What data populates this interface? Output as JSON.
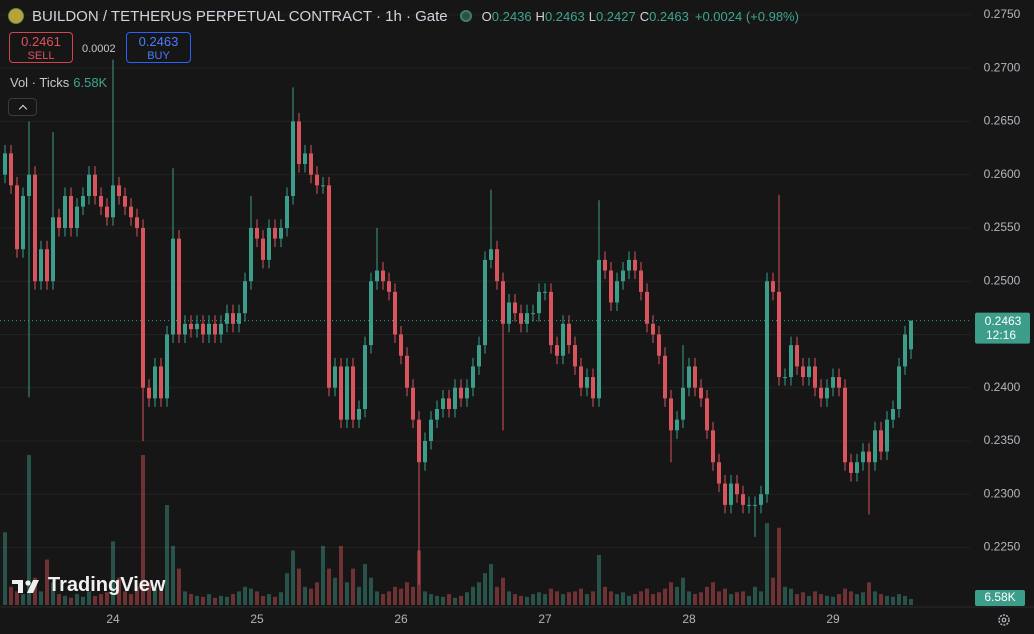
{
  "chart_data": {
    "type": "candlestick",
    "title": "BUILDON / TETHERUS PERPETUAL CONTRACT · 1h · Gate",
    "ohlc_keys": [
      "O",
      "H",
      "L",
      "C"
    ],
    "change": "+0.0024 (+0.98%)",
    "sell": {
      "price": 0.2461,
      "label": "SELL"
    },
    "spread": 0.0002,
    "buy": {
      "price": 0.2463,
      "label": "BUY"
    },
    "countdown": "12:16",
    "brand": "TradingView",
    "up_color": "#3c9d8b",
    "down_color": "#d9545c",
    "grid": true,
    "ylim": [
      0.2196,
      0.2764
    ],
    "yticks": [
      {
        "value": 0.275,
        "label": "0.2750"
      },
      {
        "value": 0.27,
        "label": "0.2700"
      },
      {
        "value": 0.265,
        "label": "0.2650"
      },
      {
        "value": 0.26,
        "label": "0.2600"
      },
      {
        "value": 0.255,
        "label": "0.2550"
      },
      {
        "value": 0.25,
        "label": "0.2500"
      },
      {
        "value": 0.245,
        "label": "0.2450"
      },
      {
        "value": 0.24,
        "label": "0.2400"
      },
      {
        "value": 0.235,
        "label": "0.2350"
      },
      {
        "value": 0.23,
        "label": "0.2300"
      },
      {
        "value": 0.225,
        "label": "0.2250"
      }
    ],
    "categories": [
      null,
      null,
      null,
      null,
      null,
      null,
      null,
      null,
      null,
      null,
      null,
      null,
      null,
      null,
      null,
      null,
      null,
      null,
      "24",
      null,
      null,
      null,
      null,
      null,
      null,
      null,
      null,
      null,
      null,
      null,
      null,
      null,
      null,
      null,
      null,
      null,
      null,
      null,
      null,
      null,
      null,
      null,
      "25",
      null,
      null,
      null,
      null,
      null,
      null,
      null,
      null,
      null,
      null,
      null,
      null,
      null,
      null,
      null,
      null,
      null,
      null,
      null,
      null,
      null,
      null,
      null,
      "26",
      null,
      null,
      null,
      null,
      null,
      null,
      null,
      null,
      null,
      null,
      null,
      null,
      null,
      null,
      null,
      null,
      null,
      null,
      null,
      null,
      null,
      null,
      null,
      "27",
      null,
      null,
      null,
      null,
      null,
      null,
      null,
      null,
      null,
      null,
      null,
      null,
      null,
      null,
      null,
      null,
      null,
      null,
      null,
      null,
      null,
      null,
      null,
      "28",
      null,
      null,
      null,
      null,
      null,
      null,
      null,
      null,
      null,
      null,
      null,
      null,
      null,
      null,
      null,
      null,
      null,
      null,
      null,
      null,
      null,
      null,
      null,
      "29",
      null,
      null,
      null,
      null,
      null,
      null,
      null,
      null,
      null,
      null,
      null,
      null,
      null
    ],
    "open": [
      0.26,
      0.262,
      0.259,
      0.253,
      0.258,
      0.26,
      0.25,
      0.253,
      0.25,
      0.256,
      0.255,
      0.258,
      0.255,
      0.257,
      0.258,
      0.26,
      0.258,
      0.257,
      0.256,
      0.259,
      0.258,
      0.257,
      0.256,
      0.255,
      0.24,
      0.239,
      0.242,
      0.239,
      0.245,
      0.254,
      0.245,
      0.246,
      0.2455,
      0.246,
      0.245,
      0.246,
      0.245,
      0.246,
      0.247,
      0.246,
      0.247,
      0.25,
      0.255,
      0.254,
      0.252,
      0.255,
      0.254,
      0.255,
      0.258,
      0.265,
      0.261,
      0.262,
      0.26,
      0.259,
      0.259,
      0.24,
      0.242,
      0.237,
      0.242,
      0.237,
      0.238,
      0.244,
      0.25,
      0.251,
      0.25,
      0.249,
      0.245,
      0.243,
      0.24,
      0.237,
      0.233,
      0.235,
      0.237,
      0.238,
      0.239,
      0.238,
      0.24,
      0.239,
      0.24,
      0.242,
      0.244,
      0.252,
      0.253,
      0.25,
      0.246,
      0.248,
      0.247,
      0.246,
      0.247,
      0.247,
      0.249,
      0.249,
      0.244,
      0.243,
      0.246,
      0.244,
      0.242,
      0.24,
      0.241,
      0.239,
      0.252,
      0.251,
      0.248,
      0.25,
      0.251,
      0.252,
      0.251,
      0.249,
      0.246,
      0.245,
      0.243,
      0.239,
      0.236,
      0.237,
      0.24,
      0.242,
      0.24,
      0.239,
      0.236,
      0.233,
      0.231,
      0.229,
      0.231,
      0.23,
      0.229,
      0.229,
      0.229,
      0.23,
      0.25,
      0.249,
      0.241,
      0.241,
      0.244,
      0.242,
      0.241,
      0.242,
      0.24,
      0.239,
      0.24,
      0.241,
      0.24,
      0.233,
      0.232,
      0.233,
      0.234,
      0.233,
      0.236,
      0.234,
      0.237,
      0.238,
      0.242,
      0.2436
    ],
    "high": [
      0.2628,
      0.2628,
      0.2598,
      0.2588,
      0.265,
      0.2608,
      0.2538,
      0.2538,
      0.264,
      0.2568,
      0.2588,
      0.2588,
      0.2578,
      0.2588,
      0.2608,
      0.2608,
      0.2588,
      0.2578,
      0.2708,
      0.2598,
      0.2588,
      0.2578,
      0.2568,
      0.2558,
      0.2408,
      0.2428,
      0.2428,
      0.2458,
      0.2606,
      0.2548,
      0.2468,
      0.2468,
      0.2468,
      0.2468,
      0.2468,
      0.2468,
      0.2468,
      0.2478,
      0.2478,
      0.2478,
      0.2508,
      0.258,
      0.2558,
      0.2548,
      0.2558,
      0.2558,
      0.2558,
      0.2588,
      0.2682,
      0.2658,
      0.2628,
      0.2628,
      0.2608,
      0.2598,
      0.2598,
      0.2428,
      0.2428,
      0.2428,
      0.2428,
      0.2388,
      0.2448,
      0.2508,
      0.255,
      0.2518,
      0.2508,
      0.2498,
      0.2458,
      0.2438,
      0.2408,
      0.2378,
      0.2358,
      0.2378,
      0.2388,
      0.2398,
      0.2398,
      0.2408,
      0.2408,
      0.2408,
      0.2428,
      0.2448,
      0.2528,
      0.2586,
      0.2538,
      0.2508,
      0.2488,
      0.2488,
      0.2478,
      0.2478,
      0.2478,
      0.2498,
      0.2498,
      0.2498,
      0.2448,
      0.2468,
      0.2468,
      0.2448,
      0.2428,
      0.2418,
      0.2418,
      0.2576,
      0.2528,
      0.2518,
      0.2508,
      0.2518,
      0.2528,
      0.2528,
      0.2518,
      0.2498,
      0.2468,
      0.2458,
      0.2438,
      0.2398,
      0.2378,
      0.244,
      0.2428,
      0.2428,
      0.2408,
      0.2398,
      0.2368,
      0.2338,
      0.2318,
      0.2318,
      0.2318,
      0.2308,
      0.2298,
      0.2298,
      0.2308,
      0.2508,
      0.2508,
      0.2581,
      0.2418,
      0.2448,
      0.2448,
      0.2428,
      0.2428,
      0.2428,
      0.2408,
      0.2408,
      0.2418,
      0.2418,
      0.2408,
      0.2338,
      0.2338,
      0.2348,
      0.2348,
      0.2368,
      0.2368,
      0.2378,
      0.2388,
      0.2428,
      0.2458,
      0.2463
    ],
    "low": [
      0.2592,
      0.2582,
      0.2522,
      0.2522,
      0.2391,
      0.2492,
      0.2492,
      0.2492,
      0.2492,
      0.2542,
      0.2542,
      0.2542,
      0.2542,
      0.2562,
      0.2572,
      0.2572,
      0.2562,
      0.2552,
      0.2552,
      0.2572,
      0.2562,
      0.2552,
      0.2542,
      0.235,
      0.2382,
      0.2382,
      0.2382,
      0.2382,
      0.2442,
      0.2442,
      0.2442,
      0.2447,
      0.2447,
      0.2442,
      0.2442,
      0.2442,
      0.2442,
      0.2452,
      0.2452,
      0.2452,
      0.2462,
      0.2492,
      0.2532,
      0.2512,
      0.2512,
      0.2532,
      0.2532,
      0.2542,
      0.2572,
      0.2602,
      0.2602,
      0.2592,
      0.2582,
      0.2582,
      0.2392,
      0.2392,
      0.2362,
      0.2362,
      0.2362,
      0.2362,
      0.2372,
      0.2432,
      0.2492,
      0.2492,
      0.2482,
      0.2442,
      0.2422,
      0.2392,
      0.2362,
      0.2215,
      0.2322,
      0.2342,
      0.2362,
      0.2372,
      0.2372,
      0.2372,
      0.2382,
      0.2382,
      0.2392,
      0.2412,
      0.2432,
      0.2512,
      0.2492,
      0.236,
      0.2452,
      0.2462,
      0.2452,
      0.2452,
      0.2462,
      0.2462,
      0.2482,
      0.2432,
      0.2422,
      0.2422,
      0.2432,
      0.2412,
      0.2392,
      0.2392,
      0.2382,
      0.2382,
      0.2502,
      0.2472,
      0.2472,
      0.2492,
      0.2502,
      0.2502,
      0.2482,
      0.2452,
      0.2442,
      0.2422,
      0.2382,
      0.233,
      0.2352,
      0.2362,
      0.2392,
      0.2392,
      0.2382,
      0.2352,
      0.2322,
      0.2302,
      0.2282,
      0.2282,
      0.2292,
      0.2282,
      0.2282,
      0.226,
      0.2282,
      0.2292,
      0.2482,
      0.2402,
      0.2402,
      0.2402,
      0.2412,
      0.2402,
      0.2402,
      0.2392,
      0.2382,
      0.2382,
      0.2392,
      0.2392,
      0.2322,
      0.2312,
      0.2312,
      0.2322,
      0.2281,
      0.2322,
      0.2332,
      0.2332,
      0.2362,
      0.2372,
      0.2412,
      0.2427
    ],
    "close": [
      0.262,
      0.259,
      0.253,
      0.258,
      0.26,
      0.25,
      0.253,
      0.25,
      0.256,
      0.255,
      0.258,
      0.255,
      0.257,
      0.258,
      0.26,
      0.258,
      0.257,
      0.256,
      0.259,
      0.258,
      0.257,
      0.256,
      0.255,
      0.24,
      0.239,
      0.242,
      0.239,
      0.245,
      0.254,
      0.245,
      0.246,
      0.2455,
      0.246,
      0.245,
      0.246,
      0.245,
      0.246,
      0.247,
      0.246,
      0.247,
      0.25,
      0.255,
      0.254,
      0.252,
      0.255,
      0.254,
      0.255,
      0.258,
      0.265,
      0.261,
      0.262,
      0.26,
      0.259,
      0.259,
      0.24,
      0.242,
      0.237,
      0.242,
      0.237,
      0.238,
      0.244,
      0.25,
      0.251,
      0.25,
      0.249,
      0.245,
      0.243,
      0.24,
      0.237,
      0.233,
      0.235,
      0.237,
      0.238,
      0.239,
      0.238,
      0.24,
      0.239,
      0.24,
      0.242,
      0.244,
      0.252,
      0.253,
      0.25,
      0.246,
      0.248,
      0.247,
      0.246,
      0.247,
      0.247,
      0.249,
      0.249,
      0.244,
      0.243,
      0.246,
      0.244,
      0.242,
      0.24,
      0.241,
      0.239,
      0.252,
      0.251,
      0.248,
      0.25,
      0.251,
      0.252,
      0.251,
      0.249,
      0.246,
      0.245,
      0.243,
      0.239,
      0.236,
      0.237,
      0.24,
      0.242,
      0.24,
      0.239,
      0.236,
      0.233,
      0.231,
      0.229,
      0.231,
      0.23,
      0.229,
      0.229,
      0.229,
      0.23,
      0.25,
      0.249,
      0.241,
      0.241,
      0.244,
      0.242,
      0.241,
      0.242,
      0.24,
      0.239,
      0.24,
      0.241,
      0.24,
      0.233,
      0.232,
      0.233,
      0.234,
      0.233,
      0.236,
      0.234,
      0.237,
      0.238,
      0.242,
      0.245,
      0.2463
    ],
    "volume": {
      "name": "Vol · Ticks",
      "values": [
        80000,
        20000,
        15000,
        12000,
        165000,
        30000,
        15000,
        50000,
        25000,
        12000,
        10000,
        8000,
        12000,
        9000,
        15000,
        10000,
        12000,
        14000,
        70000,
        30000,
        15000,
        12000,
        20000,
        165000,
        25000,
        18000,
        15000,
        110000,
        65000,
        40000,
        15000,
        12000,
        10000,
        9000,
        12000,
        8000,
        10000,
        9000,
        12000,
        15000,
        20000,
        18000,
        15000,
        10000,
        12000,
        9000,
        14000,
        35000,
        60000,
        40000,
        20000,
        18000,
        25000,
        65000,
        40000,
        30000,
        65000,
        25000,
        40000,
        20000,
        45000,
        30000,
        15000,
        12000,
        15000,
        20000,
        18000,
        25000,
        20000,
        60000,
        15000,
        12000,
        10000,
        9000,
        12000,
        8000,
        10000,
        14000,
        20000,
        25000,
        35000,
        45000,
        20000,
        30000,
        15000,
        12000,
        10000,
        9000,
        12000,
        14000,
        12000,
        18000,
        15000,
        12000,
        14000,
        15000,
        18000,
        12000,
        15000,
        55000,
        20000,
        15000,
        12000,
        14000,
        10000,
        12000,
        15000,
        18000,
        12000,
        14000,
        18000,
        25000,
        20000,
        30000,
        15000,
        12000,
        14000,
        20000,
        25000,
        15000,
        18000,
        12000,
        14000,
        15000,
        10000,
        20000,
        15000,
        90000,
        30000,
        85000,
        20000,
        18000,
        12000,
        14000,
        10000,
        15000,
        12000,
        10000,
        9000,
        12000,
        18000,
        15000,
        12000,
        14000,
        25000,
        15000,
        12000,
        10000,
        9000,
        12000,
        10000,
        6580
      ],
      "value_labels": {
        "151": "6.58K"
      }
    }
  }
}
